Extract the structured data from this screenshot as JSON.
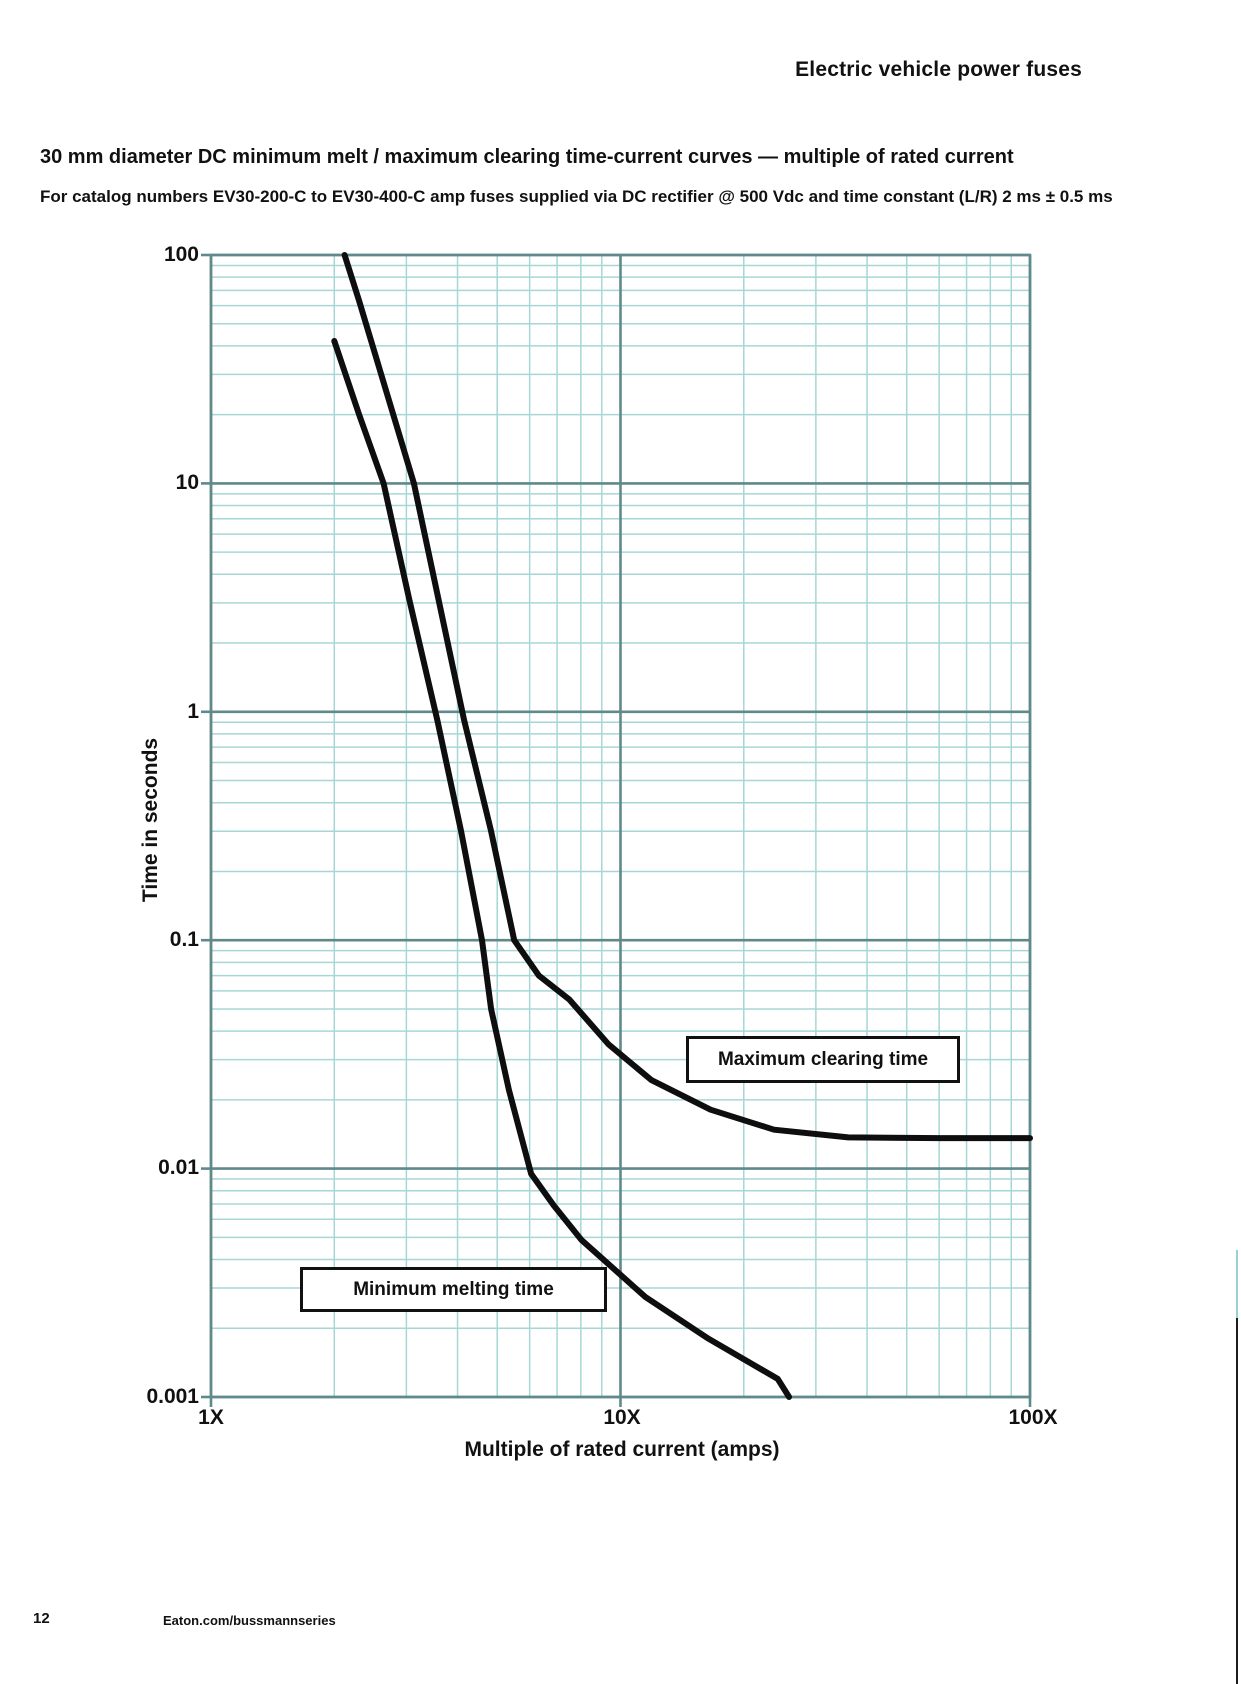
{
  "page": {
    "header": "Electric vehicle power fuses",
    "title": "30 mm diameter DC minimum melt / maximum clearing time-current curves — multiple of rated current",
    "subtitle": "For catalog numbers EV30-200-C to EV30-400-C amp fuses supplied via DC rectifier @ 500 Vdc and time constant (L/R) 2 ms ± 0.5 ms",
    "footer_page_number": "12",
    "footer_url": "Eaton.com/bussmannseries"
  },
  "chart_data": {
    "type": "line",
    "title": "30 mm diameter DC minimum melt / maximum clearing time-current curves — multiple of rated current",
    "xlabel": "Multiple of rated current (amps)",
    "ylabel": "Time in seconds",
    "x_scale": "log",
    "y_scale": "log",
    "xlim": [
      1,
      100
    ],
    "ylim": [
      0.001,
      100
    ],
    "x_ticks": [
      1,
      10,
      100
    ],
    "x_tick_labels": [
      "1X",
      "10X",
      "100X"
    ],
    "y_ticks": [
      100,
      10,
      1,
      0.1,
      0.01,
      0.001
    ],
    "y_tick_labels": [
      "100",
      "10",
      "1",
      "0.1",
      "0.01",
      "0.001"
    ],
    "grid": {
      "minor_on": true,
      "major_on": true,
      "minor_color": "#a6d7d5",
      "major_color": "#60898c"
    },
    "curve_color": "#0e0e0e",
    "legend_position": "in-plot boxed annotations",
    "series": [
      {
        "name": "Minimum melting time",
        "points_x_multiple_y_seconds": [
          [
            2.0,
            42
          ],
          [
            2.3,
            20
          ],
          [
            2.64,
            10
          ],
          [
            3.05,
            3.1
          ],
          [
            3.57,
            0.92
          ],
          [
            4.08,
            0.3
          ],
          [
            4.59,
            0.1
          ],
          [
            4.83,
            0.05
          ],
          [
            5.34,
            0.0221
          ],
          [
            6.05,
            0.0095
          ],
          [
            6.87,
            0.0069
          ],
          [
            8.03,
            0.00487
          ],
          [
            11.5,
            0.00274
          ],
          [
            16.4,
            0.0018
          ],
          [
            24.2,
            0.0012
          ],
          [
            25.8,
            0.001
          ]
        ]
      },
      {
        "name": "Maximum clearing time",
        "points_x_multiple_y_seconds": [
          [
            2.12,
            100
          ],
          [
            2.3,
            63
          ],
          [
            3.13,
            10
          ],
          [
            4.15,
            0.92
          ],
          [
            4.83,
            0.3
          ],
          [
            5.5,
            0.1
          ],
          [
            6.32,
            0.07
          ],
          [
            7.5,
            0.055
          ],
          [
            9.35,
            0.035
          ],
          [
            11.9,
            0.0244
          ],
          [
            16.6,
            0.0181
          ],
          [
            23.7,
            0.0148
          ],
          [
            36,
            0.0137
          ],
          [
            60,
            0.0136
          ],
          [
            100,
            0.0136
          ]
        ]
      }
    ]
  }
}
